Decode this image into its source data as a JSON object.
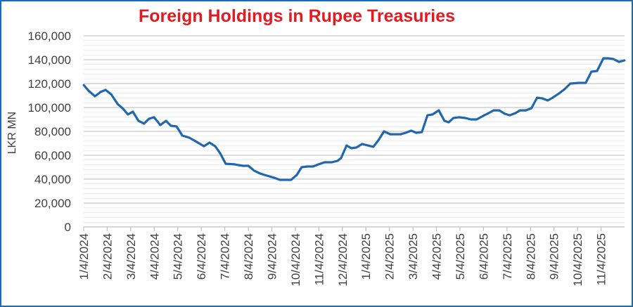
{
  "chart_data": {
    "type": "line",
    "title": "Foreign Holdings in Rupee Treasuries",
    "xlabel": "",
    "ylabel": "LKR MN",
    "ylim": [
      0,
      160000
    ],
    "yticks": [
      0,
      20000,
      40000,
      60000,
      80000,
      100000,
      120000,
      140000,
      160000
    ],
    "ytick_labels": [
      "0",
      "20,000",
      "40,000",
      "60,000",
      "80,000",
      "100,000",
      "120,000",
      "140,000",
      "160,000"
    ],
    "minor_grid_step": 4000,
    "grid": true,
    "x_unit": "months since 1/4/2024",
    "xlim": [
      0,
      23
    ],
    "xtick_labels": [
      "1/4/2024",
      "2/4/2024",
      "3/4/2024",
      "4/4/2024",
      "5/4/2024",
      "6/4/2024",
      "7/4/2024",
      "8/4/2024",
      "9/4/2024",
      "10/4/2024",
      "11/4/2024",
      "12/4/2024",
      "1/4/2025",
      "2/4/2025",
      "3/4/2025",
      "4/4/2025",
      "5/4/2025",
      "6/4/2025",
      "7/4/2025",
      "8/4/2025",
      "9/4/2025",
      "10/4/2025",
      "11/4/2025"
    ],
    "series": [
      {
        "name": "Foreign Holdings",
        "color": "#2167ae",
        "x": [
          0,
          0.21,
          0.48,
          0.72,
          0.93,
          1.17,
          1.44,
          1.68,
          1.88,
          2.09,
          2.33,
          2.57,
          2.78,
          2.99,
          3.26,
          3.5,
          3.71,
          3.95,
          4.19,
          4.49,
          4.75,
          5.11,
          5.35,
          5.59,
          5.8,
          6.04,
          6.4,
          6.76,
          7.0,
          7.26,
          7.5,
          7.8,
          8.1,
          8.34,
          8.58,
          8.82,
          9.06,
          9.27,
          9.51,
          9.75,
          9.99,
          10.25,
          10.55,
          10.79,
          10.94,
          11.18,
          11.39,
          11.6,
          11.84,
          12.08,
          12.32,
          12.53,
          12.77,
          13.03,
          13.48,
          13.69,
          13.93,
          14.14,
          14.38,
          14.62,
          14.83,
          15.1,
          15.34,
          15.52,
          15.72,
          15.96,
          16.23,
          16.47,
          16.71,
          16.98,
          17.22,
          17.43,
          17.67,
          17.91,
          18.12,
          18.36,
          18.56,
          18.8,
          19.04,
          19.28,
          19.51,
          19.73,
          19.94,
          20.21,
          20.45,
          20.69,
          21.05,
          21.35,
          21.59,
          21.83,
          22.1,
          22.31,
          22.52,
          22.76,
          23.0
        ],
        "values": [
          118800,
          114000,
          109400,
          113000,
          114700,
          111000,
          103000,
          98800,
          94100,
          96500,
          88800,
          86500,
          90600,
          91800,
          85300,
          88800,
          84700,
          84100,
          76500,
          74700,
          71800,
          67600,
          70600,
          67600,
          61800,
          52900,
          52400,
          51200,
          51200,
          47000,
          44700,
          42900,
          41200,
          39400,
          39400,
          39400,
          43500,
          50000,
          50600,
          50600,
          52400,
          54100,
          54100,
          55300,
          57600,
          68200,
          65900,
          66500,
          69400,
          68200,
          67100,
          72400,
          80000,
          77600,
          77600,
          78800,
          80600,
          78800,
          79400,
          93500,
          94100,
          97600,
          88800,
          87600,
          91200,
          91800,
          91200,
          90000,
          90000,
          92900,
          95300,
          97600,
          97600,
          94700,
          93500,
          95300,
          97600,
          97600,
          99400,
          108200,
          107600,
          105900,
          108200,
          111700,
          115300,
          120000,
          120600,
          120600,
          130000,
          130600,
          141200,
          141200,
          140600,
          138200,
          139400
        ]
      }
    ]
  }
}
